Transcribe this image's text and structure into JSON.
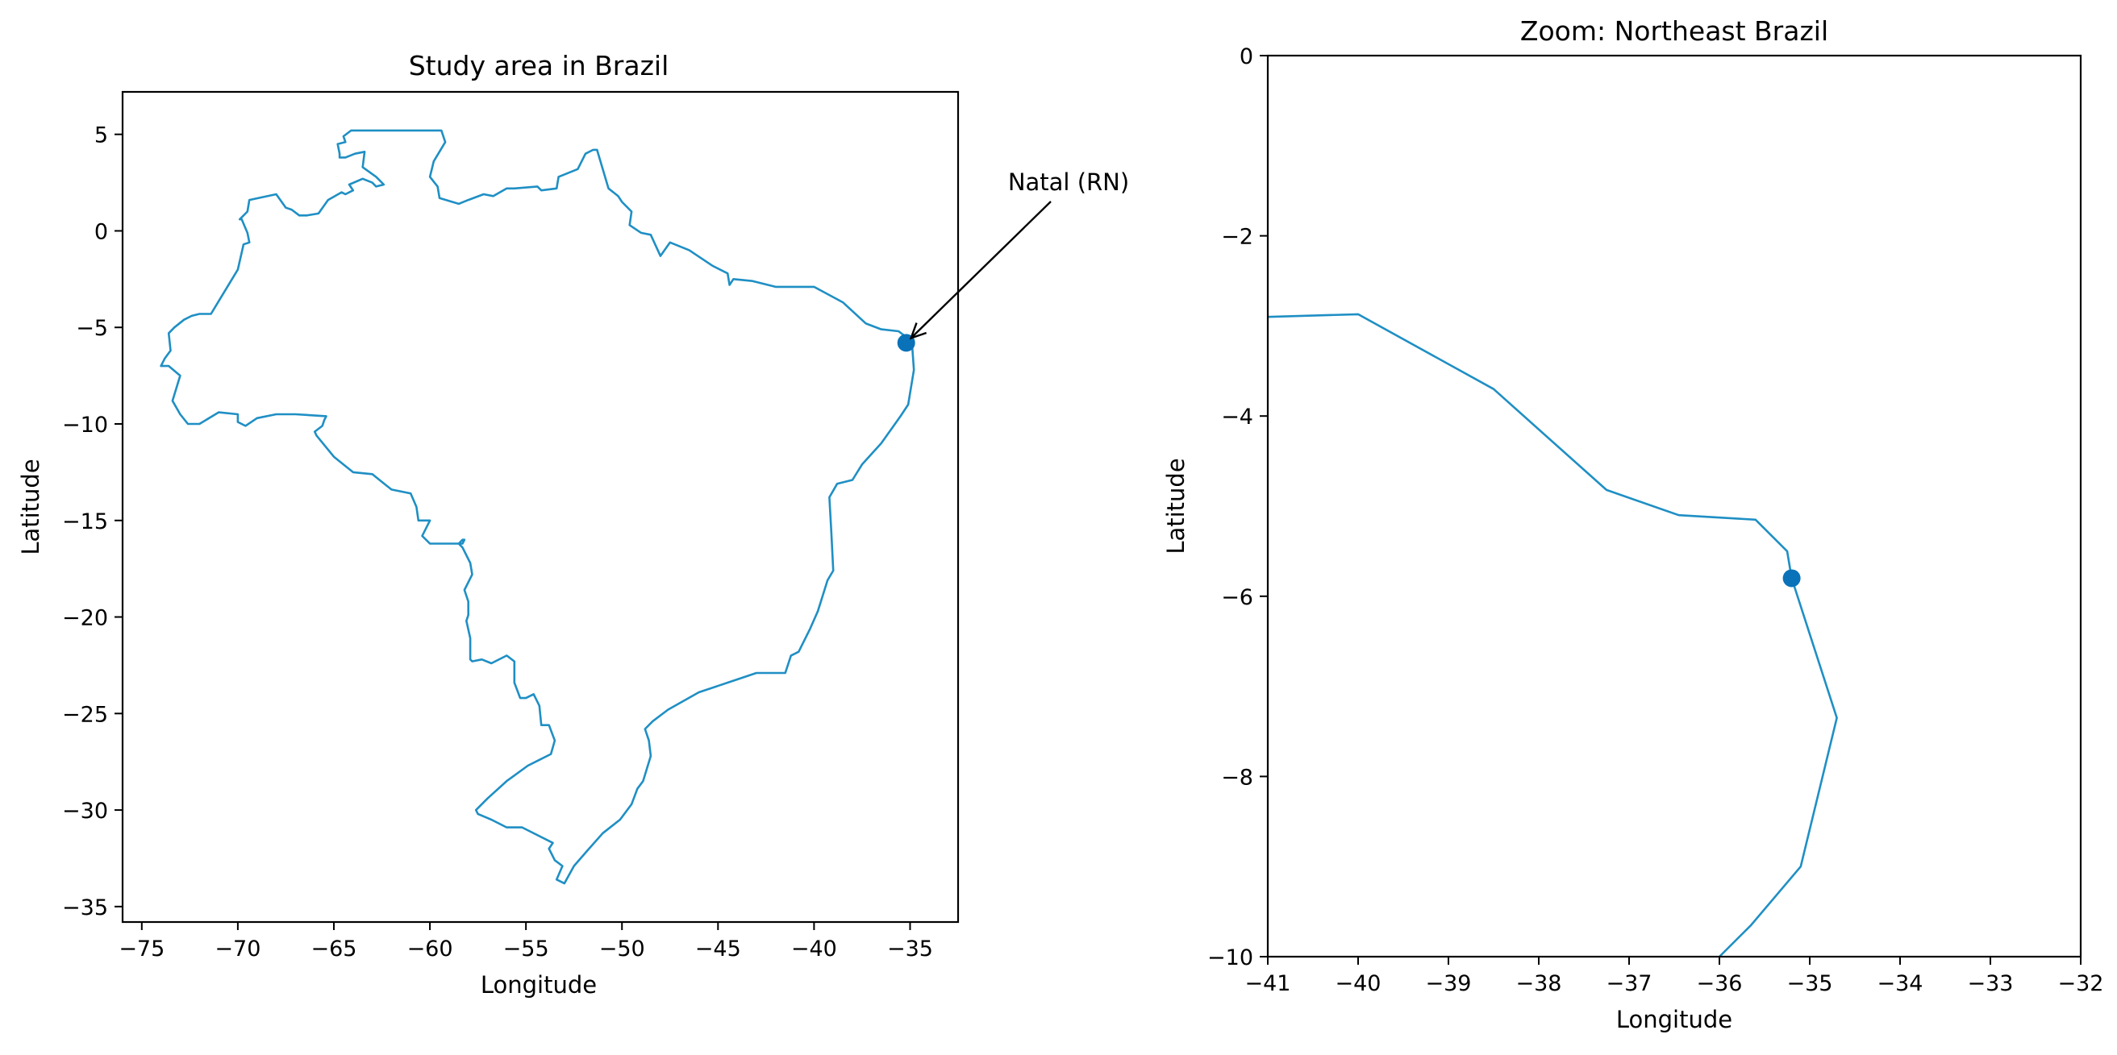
{
  "colors": {
    "line": "#1f8fc4",
    "point": "#0a72b8",
    "axes": "#000000",
    "arrow": "#000000"
  },
  "chart_data": [
    {
      "type": "map-line",
      "title": "Study area in Brazil",
      "xlabel": "Longitude",
      "ylabel": "Latitude",
      "xlim": [
        -76,
        -32.5
      ],
      "ylim": [
        -35.8,
        7.2
      ],
      "xticks": [
        -75,
        -70,
        -65,
        -60,
        -55,
        -50,
        -45,
        -40,
        -35
      ],
      "yticks": [
        5,
        0,
        -5,
        -10,
        -15,
        -20,
        -25,
        -30,
        -35
      ],
      "tick_labels_x": [
        "−75",
        "−70",
        "−65",
        "−60",
        "−55",
        "−50",
        "−45",
        "−40",
        "−35"
      ],
      "tick_labels_y": [
        "5",
        "0",
        "−5",
        "−10",
        "−15",
        "−20",
        "−25",
        "−30",
        "−35"
      ],
      "series": [
        {
          "kind": "outline",
          "lon": [
            -60.0,
            -59.4,
            -59.2,
            -59.8,
            -60.0,
            -59.6,
            -59.5,
            -58.5,
            -58.0,
            -57.2,
            -56.7,
            -56.0,
            -55.6,
            -54.4,
            -54.2,
            -53.4,
            -53.3,
            -52.3,
            -51.9,
            -51.5,
            -51.3,
            -50.7,
            -50.2,
            -50.0,
            -49.5,
            -49.6,
            -49.0,
            -48.5,
            -48.0,
            -47.5,
            -46.5,
            -45.3,
            -44.5,
            -44.4,
            -44.2,
            -43.2,
            -42.0,
            -41.0,
            -40.0,
            -38.5,
            -37.3,
            -36.5,
            -35.6,
            -35.2,
            -34.9,
            -34.8,
            -35.1,
            -35.5,
            -36.5,
            -37.5,
            -38.0,
            -38.8,
            -39.2,
            -39.1,
            -39.0,
            -39.3,
            -39.8,
            -40.2,
            -40.8,
            -41.2,
            -41.5,
            -42.0,
            -43.0,
            -44.5,
            -46.0,
            -47.6,
            -48.4,
            -48.8,
            -48.6,
            -48.5,
            -48.9,
            -49.2,
            -49.5,
            -50.1,
            -51.0,
            -51.8,
            -52.5,
            -53.0,
            -53.4,
            -53.1,
            -53.5,
            -53.8,
            -53.6,
            -55.2,
            -56.0,
            -56.8,
            -57.5,
            -57.6,
            -57.0,
            -56.0,
            -54.9,
            -54.3,
            -53.7,
            -53.5,
            -53.8,
            -54.2,
            -54.3,
            -54.6,
            -55.0,
            -55.3,
            -55.6,
            -55.6,
            -56.0,
            -56.8,
            -57.3,
            -57.8,
            -57.9,
            -57.9,
            -58.1,
            -58.0,
            -58.0,
            -58.2,
            -57.8,
            -57.9,
            -58.3,
            -58.5,
            -58.3,
            -58.2,
            -58.3,
            -60.0,
            -60.4,
            -60.0,
            -60.6,
            -60.7,
            -61.0,
            -62.0,
            -62.5,
            -63.0,
            -64.0,
            -65.0,
            -65.9,
            -66.0,
            -65.6,
            -65.5,
            -65.4,
            -67.0,
            -68.0,
            -69.0,
            -69.6,
            -70.0,
            -70.0,
            -71.0,
            -72.0,
            -72.6,
            -73.0,
            -73.4,
            -73.0,
            -73.6,
            -74.0,
            -73.8,
            -73.5,
            -73.6,
            -73.3,
            -72.8,
            -72.4,
            -72.0,
            -71.4,
            -70.0,
            -69.7,
            -69.4,
            -69.5,
            -69.8,
            -69.9,
            -69.5,
            -69.4,
            -69.4,
            -68.0,
            -67.5,
            -67.2,
            -66.8,
            -66.4,
            -65.8,
            -65.3,
            -64.6,
            -64.4,
            -64.0,
            -64.2,
            -63.5,
            -63.0,
            -62.8,
            -62.4,
            -62.8,
            -63.5,
            -63.4,
            -63.9,
            -64.4,
            -64.7,
            -64.7,
            -64.8,
            -64.4,
            -64.5,
            -64.5,
            -64.1,
            -63.5,
            -63.0,
            -62.2,
            -61.7,
            -61.2,
            -60.8,
            -60.7,
            -60.3,
            -60.0
          ],
          "lat": [
            5.2,
            5.2,
            4.6,
            3.6,
            2.8,
            2.3,
            1.7,
            1.4,
            1.6,
            1.9,
            1.8,
            2.2,
            2.2,
            2.3,
            2.1,
            2.2,
            2.8,
            3.2,
            4.0,
            4.2,
            4.2,
            2.2,
            1.8,
            1.5,
            1.0,
            0.3,
            -0.1,
            -0.2,
            -1.3,
            -0.6,
            -1.0,
            -1.8,
            -2.2,
            -2.8,
            -2.5,
            -2.6,
            -2.9,
            -2.9,
            -2.9,
            -3.7,
            -4.8,
            -5.1,
            -5.2,
            -5.5,
            -5.8,
            -7.2,
            -9.0,
            -9.6,
            -11.0,
            -12.1,
            -12.9,
            -13.1,
            -13.8,
            -15.6,
            -17.6,
            -18.1,
            -19.7,
            -20.6,
            -21.8,
            -22.0,
            -22.9,
            -22.9,
            -22.9,
            -23.4,
            -23.9,
            -24.8,
            -25.4,
            -25.8,
            -26.4,
            -27.2,
            -28.5,
            -28.9,
            -29.7,
            -30.5,
            -31.2,
            -32.1,
            -32.9,
            -33.8,
            -33.6,
            -32.9,
            -32.6,
            -32.0,
            -31.7,
            -30.9,
            -30.9,
            -30.5,
            -30.2,
            -30.0,
            -29.4,
            -28.5,
            -27.7,
            -27.4,
            -27.1,
            -26.4,
            -25.6,
            -25.6,
            -24.6,
            -24.0,
            -24.2,
            -24.2,
            -23.4,
            -22.3,
            -22.0,
            -22.4,
            -22.2,
            -22.3,
            -22.2,
            -21.1,
            -20.2,
            -19.9,
            -19.2,
            -18.6,
            -17.8,
            -17.2,
            -16.4,
            -16.2,
            -16.0,
            -16.0,
            -16.2,
            -16.2,
            -15.8,
            -15.0,
            -15.0,
            -14.3,
            -13.6,
            -13.4,
            -13.0,
            -12.6,
            -12.5,
            -11.7,
            -10.6,
            -10.4,
            -10.1,
            -9.8,
            -9.6,
            -9.5,
            -9.5,
            -9.7,
            -10.1,
            -9.9,
            -9.5,
            -9.4,
            -10.0,
            -10.0,
            -9.5,
            -8.8,
            -7.5,
            -7.0,
            -7.0,
            -6.6,
            -6.2,
            -5.3,
            -5.0,
            -4.6,
            -4.4,
            -4.3,
            -4.3,
            -2.0,
            -0.7,
            -0.6,
            -0.1,
            0.6,
            0.6,
            1.0,
            1.6,
            1.6,
            1.9,
            1.2,
            1.1,
            0.8,
            0.8,
            0.9,
            1.6,
            2.0,
            1.9,
            2.1,
            2.4,
            2.7,
            2.5,
            2.3,
            2.4,
            2.8,
            3.3,
            4.1,
            4.0,
            3.8,
            3.8,
            4.0,
            4.5,
            4.6,
            4.9,
            4.9,
            5.2
          ],
          "label": ""
        },
        {
          "kind": "point",
          "lon": [
            -35.2
          ],
          "lat": [
            -5.8
          ],
          "label": ""
        }
      ],
      "annotations": [
        {
          "text": "Natal (RN)",
          "point": [
            -35.2,
            -5.8
          ],
          "text_at": [
            -33.0,
            2.5
          ]
        }
      ]
    },
    {
      "type": "map-line",
      "title": "Zoom: Northeast Brazil",
      "xlabel": "Longitude",
      "ylabel": "Latitude",
      "xlim": [
        -41,
        -32
      ],
      "ylim": [
        -10,
        0
      ],
      "xticks": [
        -41,
        -40,
        -39,
        -38,
        -37,
        -36,
        -35,
        -34,
        -33,
        -32
      ],
      "yticks": [
        0,
        -2,
        -4,
        -6,
        -8,
        -10
      ],
      "tick_labels_x": [
        "−41",
        "−40",
        "−39",
        "−38",
        "−37",
        "−36",
        "−35",
        "−34",
        "−33",
        "−32"
      ],
      "tick_labels_y": [
        "0",
        "−2",
        "−4",
        "−6",
        "−8",
        "−10"
      ],
      "series": [
        {
          "kind": "outline",
          "lon": [
            -41.0,
            -40.0,
            -38.5,
            -37.25,
            -36.45,
            -35.6,
            -35.25,
            -35.2,
            -34.7,
            -35.1,
            -35.65,
            -36.0
          ],
          "lat": [
            -2.9,
            -2.87,
            -3.7,
            -4.82,
            -5.1,
            -5.15,
            -5.5,
            -5.8,
            -7.35,
            -9.0,
            -9.65,
            -10.0
          ],
          "label": ""
        },
        {
          "kind": "point",
          "lon": [
            -35.2
          ],
          "lat": [
            -5.8
          ],
          "label": ""
        }
      ]
    }
  ]
}
